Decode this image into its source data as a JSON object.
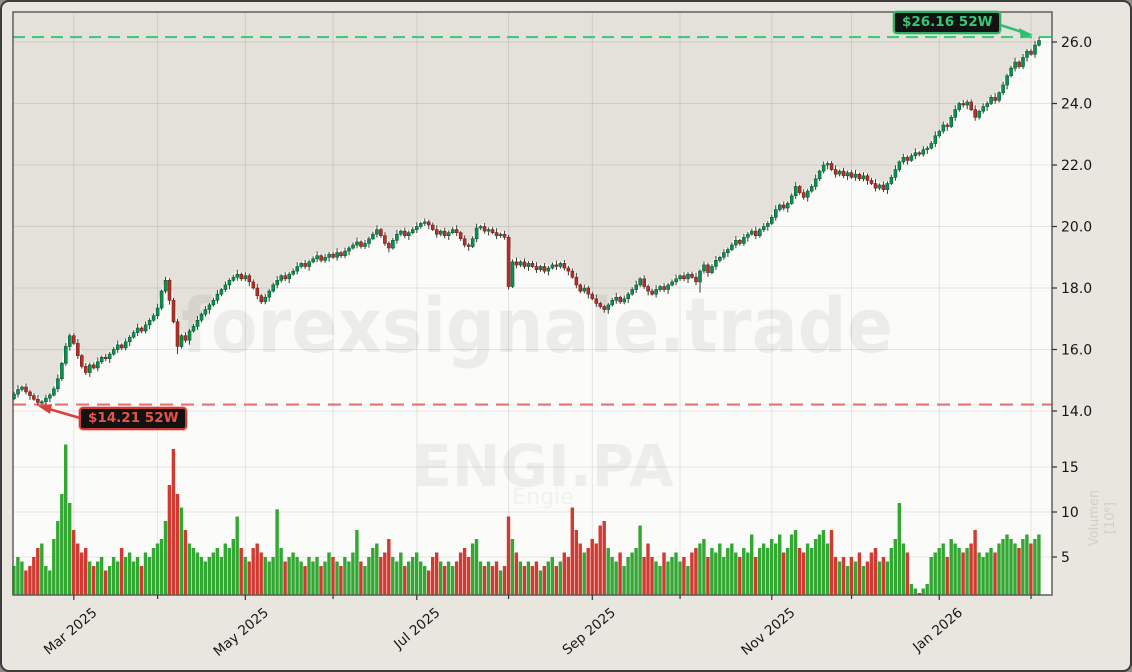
{
  "watermarks": {
    "main": "forexsignale.trade",
    "symbol": "ENGI.PA",
    "company": "Engie"
  },
  "annotations": {
    "high": {
      "label": "$26.16 52W",
      "value": 26.16,
      "color": "#2fbf71"
    },
    "low": {
      "label": "$14.21 52W",
      "value": 14.21,
      "color": "#d94040"
    }
  },
  "chart_data": {
    "type": "candlestick+volume",
    "symbol": "ENGI.PA",
    "company": "Engie",
    "high_52w": 26.16,
    "low_52w": 14.21,
    "x_range": [
      "Feb 2025",
      "Feb 2026"
    ],
    "x_tick_labels": [
      "Mar 2025",
      "May 2025",
      "Jul 2025",
      "Sep 2025",
      "Nov 2025",
      "Jan 2026"
    ],
    "price_axis": {
      "ticks": [
        26.0,
        24.0,
        22.0,
        20.0,
        18.0,
        16.0,
        14.0
      ],
      "range": [
        13.1,
        27.0
      ]
    },
    "volume_axis": {
      "ticks": [
        15,
        10,
        5
      ],
      "label": "Volumen",
      "scale": "[10⁶]"
    },
    "colors": {
      "up": "#0f8f4f",
      "up_edge": "#0a5c33",
      "down": "#b03228",
      "down_edge": "#7a2019",
      "wick": "#3a3a3a",
      "vol_up": "#27a327",
      "vol_down": "#cf2f25",
      "grid": "rgba(0,0,0,0.09)",
      "fill_above": "#e4e1da",
      "plot_bg": "#fbfbfa",
      "high_line": "#44c97c",
      "low_line": "#e35b5b",
      "spine": "#555555"
    },
    "first_open": 14.4,
    "wick_pattern": [
      0.08,
      0.14,
      0.05,
      0.11,
      0.07
    ],
    "wick_overrides": {
      "7": [
        0.06,
        0.07
      ],
      "41": [
        0.1,
        0.25
      ],
      "124": [
        0.08,
        0.1
      ],
      "148": [
        0.06,
        0.1
      ],
      "172": [
        0.05,
        0.35
      ],
      "257": [
        0.11,
        0.05
      ]
    },
    "candles_note": "entries are [close, volume]; open = previous close; high/low = body extreme +/- wick",
    "candles": [
      [
        14.55,
        4
      ],
      [
        14.7,
        5
      ],
      [
        14.78,
        4.5
      ],
      [
        14.62,
        3.5
      ],
      [
        14.5,
        4
      ],
      [
        14.38,
        5
      ],
      [
        14.28,
        6
      ],
      [
        14.3,
        6.5
      ],
      [
        14.42,
        4
      ],
      [
        14.52,
        3.5
      ],
      [
        14.72,
        7
      ],
      [
        15.05,
        9
      ],
      [
        15.55,
        12
      ],
      [
        16.1,
        17.5
      ],
      [
        16.45,
        11
      ],
      [
        16.2,
        8
      ],
      [
        15.8,
        6.5
      ],
      [
        15.45,
        5.5
      ],
      [
        15.25,
        6
      ],
      [
        15.5,
        4.5
      ],
      [
        15.4,
        4
      ],
      [
        15.6,
        4.5
      ],
      [
        15.75,
        5
      ],
      [
        15.7,
        3.5
      ],
      [
        15.85,
        4
      ],
      [
        16.0,
        5
      ],
      [
        16.15,
        4.5
      ],
      [
        16.05,
        6
      ],
      [
        16.25,
        5
      ],
      [
        16.4,
        5.5
      ],
      [
        16.55,
        4.5
      ],
      [
        16.7,
        5
      ],
      [
        16.6,
        4
      ],
      [
        16.8,
        5.5
      ],
      [
        16.95,
        5
      ],
      [
        17.1,
        6
      ],
      [
        17.35,
        6.5
      ],
      [
        17.9,
        7
      ],
      [
        18.25,
        9
      ],
      [
        17.6,
        13
      ],
      [
        16.9,
        17
      ],
      [
        16.1,
        12
      ],
      [
        16.45,
        10.5
      ],
      [
        16.3,
        8
      ],
      [
        16.6,
        6.5
      ],
      [
        16.75,
        6
      ],
      [
        16.95,
        5.5
      ],
      [
        17.15,
        5
      ],
      [
        17.3,
        4.5
      ],
      [
        17.45,
        5
      ],
      [
        17.6,
        5.5
      ],
      [
        17.8,
        6
      ],
      [
        17.95,
        5
      ],
      [
        18.1,
        6.5
      ],
      [
        18.25,
        6
      ],
      [
        18.35,
        7
      ],
      [
        18.45,
        9.5
      ],
      [
        18.3,
        6
      ],
      [
        18.4,
        5
      ],
      [
        18.2,
        4.5
      ],
      [
        18.0,
        6
      ],
      [
        17.75,
        6.5
      ],
      [
        17.55,
        5.5
      ],
      [
        17.7,
        5
      ],
      [
        17.9,
        4.5
      ],
      [
        18.1,
        5
      ],
      [
        18.25,
        10.3
      ],
      [
        18.4,
        6
      ],
      [
        18.3,
        4.5
      ],
      [
        18.45,
        5
      ],
      [
        18.55,
        5.5
      ],
      [
        18.7,
        5
      ],
      [
        18.8,
        4.5
      ],
      [
        18.7,
        4
      ],
      [
        18.85,
        5
      ],
      [
        18.95,
        4.5
      ],
      [
        19.05,
        5
      ],
      [
        18.9,
        4
      ],
      [
        19.0,
        4.5
      ],
      [
        19.1,
        5.5
      ],
      [
        19.0,
        5
      ],
      [
        19.15,
        4.5
      ],
      [
        19.05,
        4
      ],
      [
        19.2,
        5
      ],
      [
        19.3,
        4.5
      ],
      [
        19.4,
        5.5
      ],
      [
        19.5,
        8
      ],
      [
        19.35,
        4.5
      ],
      [
        19.45,
        4
      ],
      [
        19.6,
        5
      ],
      [
        19.75,
        6
      ],
      [
        19.9,
        6.5
      ],
      [
        19.7,
        5
      ],
      [
        19.45,
        5.5
      ],
      [
        19.3,
        7
      ],
      [
        19.55,
        5
      ],
      [
        19.75,
        4.5
      ],
      [
        19.85,
        5.5
      ],
      [
        19.7,
        4
      ],
      [
        19.8,
        4.5
      ],
      [
        19.9,
        5
      ],
      [
        20.0,
        5.5
      ],
      [
        20.1,
        4.5
      ],
      [
        20.15,
        4
      ],
      [
        20.05,
        3.5
      ],
      [
        19.9,
        5
      ],
      [
        19.75,
        5.5
      ],
      [
        19.85,
        4.5
      ],
      [
        19.7,
        4
      ],
      [
        19.8,
        4.5
      ],
      [
        19.9,
        4
      ],
      [
        19.8,
        4.5
      ],
      [
        19.6,
        5.5
      ],
      [
        19.4,
        6
      ],
      [
        19.35,
        5
      ],
      [
        19.6,
        6.5
      ],
      [
        19.95,
        7
      ],
      [
        20.0,
        4.5
      ],
      [
        19.85,
        4
      ],
      [
        19.9,
        4.5
      ],
      [
        19.8,
        4
      ],
      [
        19.7,
        4.5
      ],
      [
        19.75,
        3.5
      ],
      [
        19.65,
        4
      ],
      [
        18.05,
        9.5
      ],
      [
        18.85,
        7
      ],
      [
        18.75,
        5.5
      ],
      [
        18.85,
        4.5
      ],
      [
        18.7,
        4
      ],
      [
        18.8,
        4.5
      ],
      [
        18.7,
        4
      ],
      [
        18.6,
        4.5
      ],
      [
        18.7,
        3.5
      ],
      [
        18.55,
        4
      ],
      [
        18.65,
        4.5
      ],
      [
        18.75,
        5
      ],
      [
        18.7,
        4
      ],
      [
        18.8,
        4.5
      ],
      [
        18.65,
        5.5
      ],
      [
        18.55,
        5
      ],
      [
        18.35,
        10.5
      ],
      [
        18.1,
        8
      ],
      [
        17.9,
        6.5
      ],
      [
        18.0,
        5.5
      ],
      [
        17.8,
        6
      ],
      [
        17.65,
        7
      ],
      [
        17.5,
        6.5
      ],
      [
        17.4,
        8.5
      ],
      [
        17.3,
        9
      ],
      [
        17.45,
        6
      ],
      [
        17.6,
        5
      ],
      [
        17.7,
        4.5
      ],
      [
        17.55,
        5.5
      ],
      [
        17.65,
        4
      ],
      [
        17.8,
        5
      ],
      [
        17.95,
        5.5
      ],
      [
        18.1,
        6
      ],
      [
        18.3,
        8.5
      ],
      [
        18.05,
        5
      ],
      [
        17.9,
        6.5
      ],
      [
        17.8,
        5
      ],
      [
        17.95,
        4.5
      ],
      [
        18.05,
        4
      ],
      [
        17.95,
        5.5
      ],
      [
        18.1,
        4.5
      ],
      [
        18.2,
        5
      ],
      [
        18.3,
        5.5
      ],
      [
        18.4,
        4.5
      ],
      [
        18.3,
        5
      ],
      [
        18.45,
        4
      ],
      [
        18.35,
        5.5
      ],
      [
        18.2,
        6
      ],
      [
        18.55,
        6.5
      ],
      [
        18.75,
        7
      ],
      [
        18.5,
        5
      ],
      [
        18.7,
        6
      ],
      [
        18.9,
        5.5
      ],
      [
        19.0,
        6.5
      ],
      [
        19.15,
        5
      ],
      [
        19.25,
        6
      ],
      [
        19.4,
        6.5
      ],
      [
        19.55,
        5.5
      ],
      [
        19.45,
        5
      ],
      [
        19.65,
        6
      ],
      [
        19.75,
        5.5
      ],
      [
        19.85,
        7.5
      ],
      [
        19.7,
        5
      ],
      [
        19.9,
        6
      ],
      [
        20.0,
        6.5
      ],
      [
        20.1,
        6
      ],
      [
        20.3,
        7
      ],
      [
        20.55,
        6.5
      ],
      [
        20.7,
        7.5
      ],
      [
        20.6,
        5.5
      ],
      [
        20.75,
        6
      ],
      [
        21.0,
        7.5
      ],
      [
        21.3,
        8
      ],
      [
        21.1,
        6
      ],
      [
        20.95,
        5.5
      ],
      [
        21.15,
        6.5
      ],
      [
        21.3,
        6
      ],
      [
        21.55,
        7
      ],
      [
        21.8,
        7.5
      ],
      [
        22.0,
        8
      ],
      [
        22.05,
        6.5
      ],
      [
        21.85,
        8
      ],
      [
        21.7,
        5
      ],
      [
        21.8,
        4.5
      ],
      [
        21.65,
        5
      ],
      [
        21.75,
        4
      ],
      [
        21.6,
        5
      ],
      [
        21.7,
        4.5
      ],
      [
        21.55,
        5.5
      ],
      [
        21.65,
        4
      ],
      [
        21.5,
        4.5
      ],
      [
        21.4,
        5.5
      ],
      [
        21.25,
        6
      ],
      [
        21.35,
        4.5
      ],
      [
        21.2,
        5
      ],
      [
        21.4,
        4.5
      ],
      [
        21.6,
        6
      ],
      [
        21.85,
        7
      ],
      [
        22.1,
        11
      ],
      [
        22.25,
        6.5
      ],
      [
        22.15,
        5.5
      ],
      [
        22.3,
        2
      ],
      [
        22.4,
        1.5
      ],
      [
        22.35,
        1
      ],
      [
        22.5,
        1.5
      ],
      [
        22.55,
        2
      ],
      [
        22.7,
        5
      ],
      [
        22.95,
        5.5
      ],
      [
        23.1,
        6
      ],
      [
        23.3,
        6.5
      ],
      [
        23.25,
        5
      ],
      [
        23.55,
        7
      ],
      [
        23.8,
        6.5
      ],
      [
        24.0,
        6
      ],
      [
        23.95,
        5.5
      ],
      [
        24.05,
        6
      ],
      [
        23.8,
        6.5
      ],
      [
        23.55,
        8
      ],
      [
        23.75,
        5.5
      ],
      [
        23.9,
        5
      ],
      [
        24.0,
        5.5
      ],
      [
        24.2,
        6
      ],
      [
        24.1,
        5.5
      ],
      [
        24.35,
        6.5
      ],
      [
        24.6,
        7
      ],
      [
        24.9,
        7.5
      ],
      [
        25.15,
        7
      ],
      [
        25.35,
        6.5
      ],
      [
        25.2,
        6
      ],
      [
        25.5,
        7
      ],
      [
        25.7,
        7.5
      ],
      [
        25.6,
        6.5
      ],
      [
        25.9,
        7
      ],
      [
        26.05,
        7.5
      ]
    ]
  }
}
